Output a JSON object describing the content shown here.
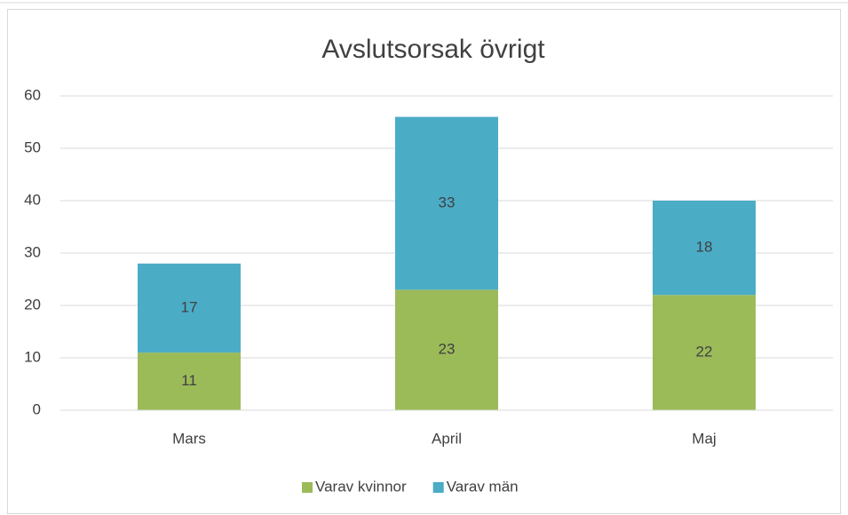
{
  "chart_data": {
    "type": "bar",
    "stacked": true,
    "title": "Avslutsorsak övrigt",
    "categories": [
      "Mars",
      "April",
      "Maj"
    ],
    "series": [
      {
        "name": "Varav kvinnor",
        "color": "#9bbb59",
        "values": [
          11,
          23,
          22
        ]
      },
      {
        "name": "Varav män",
        "color": "#4bacc6",
        "values": [
          17,
          33,
          18
        ]
      }
    ],
    "ylim": [
      0,
      60
    ],
    "yticks": [
      0,
      10,
      20,
      30,
      40,
      50,
      60
    ],
    "grid": true,
    "legend": "bottom"
  }
}
